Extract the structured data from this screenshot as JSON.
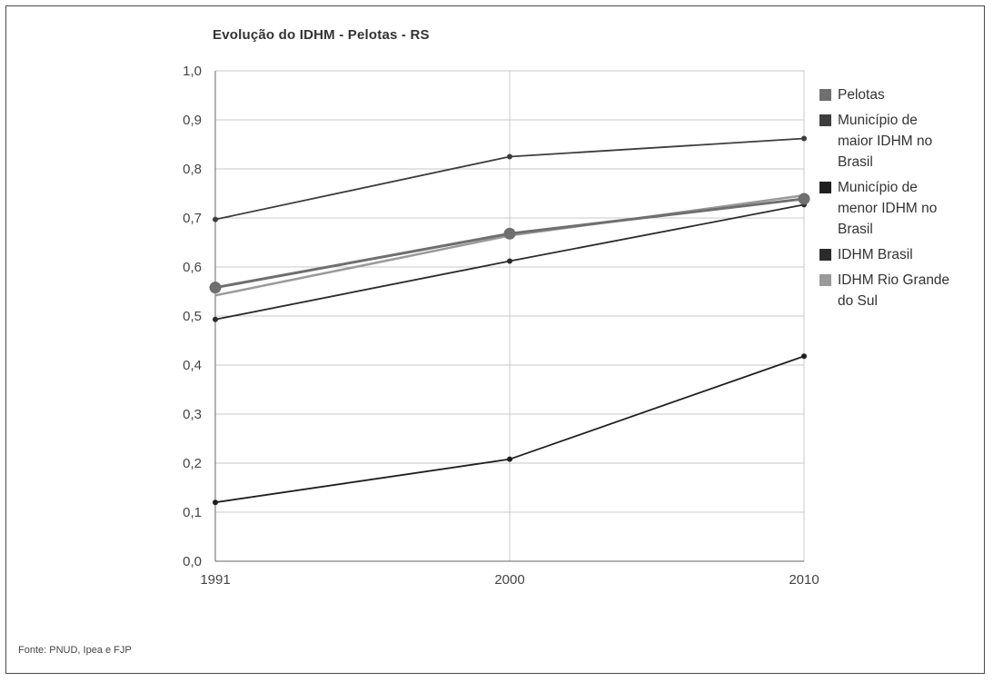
{
  "chart_data": {
    "type": "line",
    "title": "Evolução do IDHM - Pelotas - RS",
    "xlabel": "",
    "ylabel": "",
    "x": [
      "1991",
      "2000",
      "2010"
    ],
    "ylim": [
      0,
      1
    ],
    "y_ticks": [
      "0,0",
      "0,1",
      "0,2",
      "0,3",
      "0,4",
      "0,5",
      "0,6",
      "0,7",
      "0,8",
      "0,9",
      "1,0"
    ],
    "grid": true,
    "legend_position": "right",
    "series": [
      {
        "name": "Pelotas",
        "values": [
          0.558,
          0.668,
          0.739
        ],
        "color": "#6f6f6f",
        "markers": "large"
      },
      {
        "name": "Município de maior IDHM no Brasil",
        "values": [
          0.697,
          0.825,
          0.862
        ],
        "color": "#3d3d3d",
        "markers": "small"
      },
      {
        "name": "Município de menor IDHM no Brasil",
        "values": [
          0.12,
          0.208,
          0.418
        ],
        "color": "#1f1f1f",
        "markers": "small"
      },
      {
        "name": "IDHM Brasil",
        "values": [
          0.493,
          0.612,
          0.727
        ],
        "color": "#2b2b2b",
        "markers": "small"
      },
      {
        "name": "IDHM Rio Grande do Sul",
        "values": [
          0.542,
          0.664,
          0.746
        ],
        "color": "#9a9a9a",
        "markers": "none"
      }
    ],
    "legend_lines": [
      [
        "Pelotas"
      ],
      [
        "Município de",
        "maior IDHM no",
        "Brasil"
      ],
      [
        "Município de",
        "menor IDHM no",
        "Brasil"
      ],
      [
        "IDHM Brasil"
      ],
      [
        "IDHM Rio Grande",
        "do Sul"
      ]
    ]
  },
  "source": "Fonte: PNUD, Ipea e FJP"
}
